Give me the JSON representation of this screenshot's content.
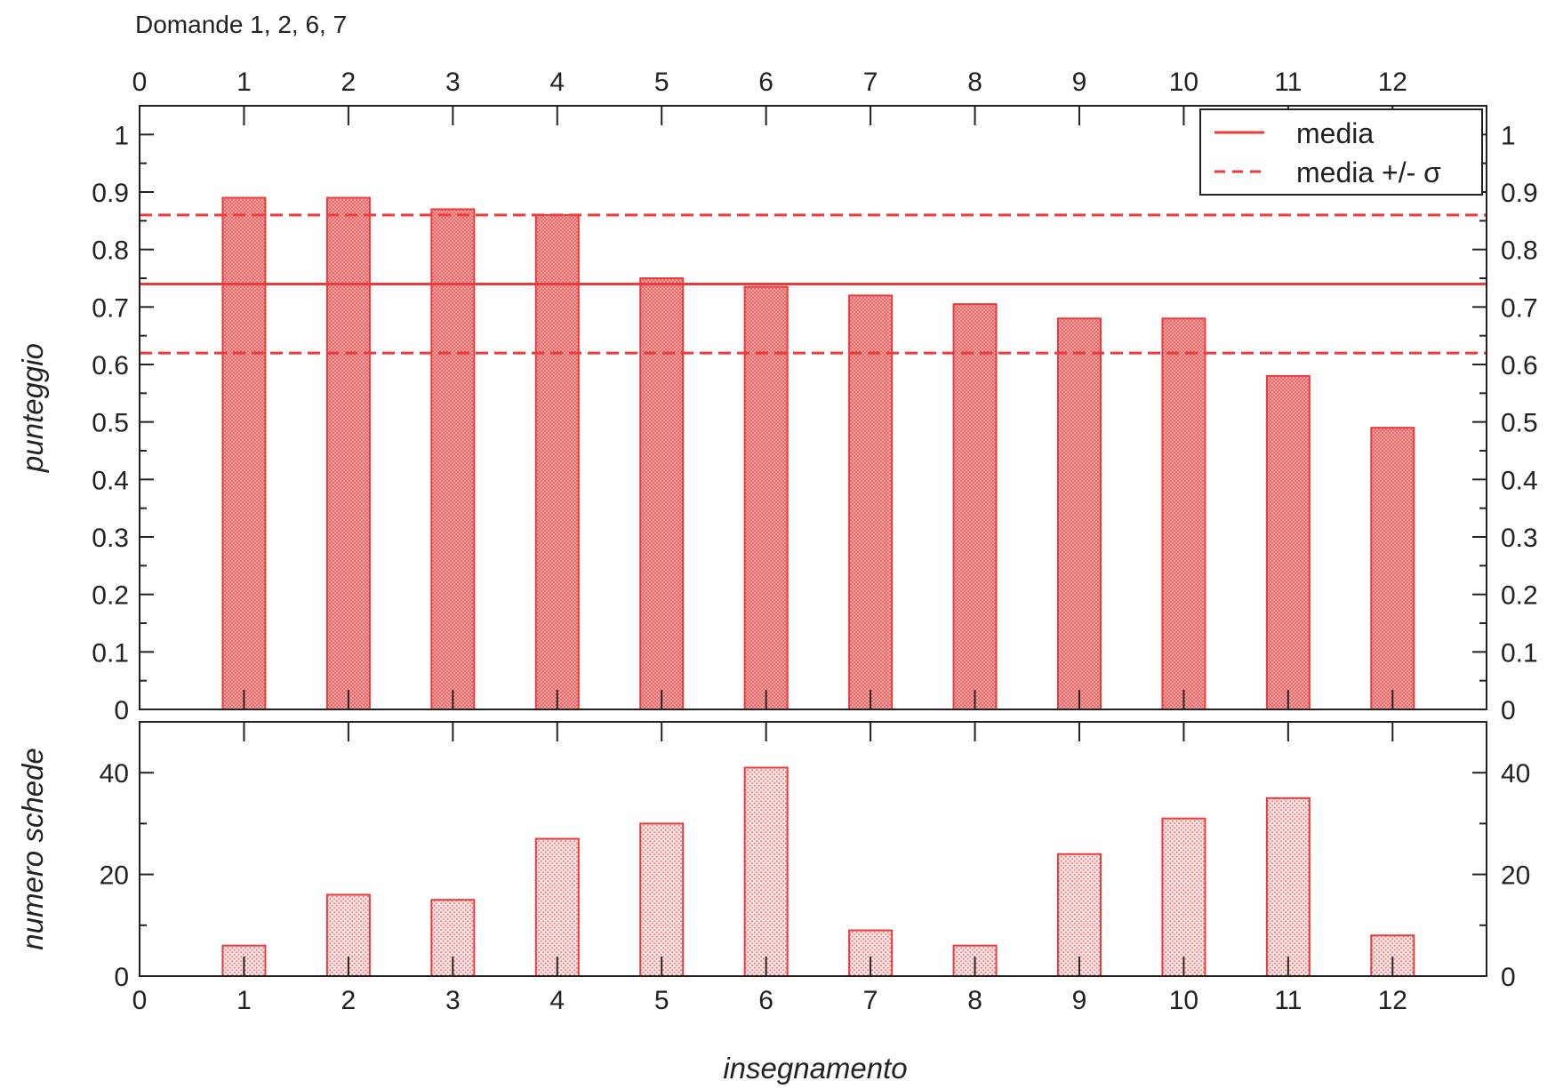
{
  "title": "Domande 1, 2, 6, 7",
  "xlabel": "insegnamento",
  "colors": {
    "bar": "#ee3a3a",
    "bar_fill_top": "#f07a7a",
    "bar_fill_bottom": "#f6b8b8",
    "axis": "#222222"
  },
  "chart_data": [
    {
      "type": "bar",
      "panel": "top",
      "categories": [
        1,
        2,
        3,
        4,
        5,
        6,
        7,
        8,
        9,
        10,
        11,
        12
      ],
      "x_ticks": [
        0,
        1,
        2,
        3,
        4,
        5,
        6,
        7,
        8,
        9,
        10,
        11,
        12
      ],
      "xlim": [
        0,
        12.9
      ],
      "ylabel": "punteggio",
      "ylim": [
        0,
        1.05
      ],
      "y_ticks": [
        "0",
        "0.1",
        "0.2",
        "0.3",
        "0.4",
        "0.5",
        "0.6",
        "0.7",
        "0.8",
        "0.9",
        "1"
      ],
      "series": [
        {
          "name": "punteggio",
          "values": [
            0.89,
            0.89,
            0.87,
            0.86,
            0.75,
            0.735,
            0.72,
            0.705,
            0.68,
            0.68,
            0.58,
            0.49
          ]
        }
      ],
      "reference_lines": [
        {
          "name": "media",
          "style": "solid",
          "y": 0.74
        },
        {
          "name": "media +/- σ",
          "style": "dashed",
          "y": 0.86
        },
        {
          "name": "media +/- σ",
          "style": "dashed",
          "y": 0.62
        }
      ],
      "legend": {
        "placement": "top-right",
        "entries": [
          {
            "label": "media",
            "style": "solid"
          },
          {
            "label": "media +/- σ",
            "style": "dashed"
          }
        ]
      },
      "grid": false
    },
    {
      "type": "bar",
      "panel": "bottom",
      "categories": [
        1,
        2,
        3,
        4,
        5,
        6,
        7,
        8,
        9,
        10,
        11,
        12
      ],
      "x_ticks": [
        0,
        1,
        2,
        3,
        4,
        5,
        6,
        7,
        8,
        9,
        10,
        11,
        12
      ],
      "xlim": [
        0,
        12.9
      ],
      "ylabel": "numero schede",
      "ylim": [
        0,
        50
      ],
      "y_ticks": [
        "0",
        "20",
        "40"
      ],
      "series": [
        {
          "name": "numero schede",
          "values": [
            6,
            16,
            15,
            27,
            30,
            41,
            9,
            6,
            24,
            31,
            35,
            8
          ]
        }
      ],
      "grid": false
    }
  ]
}
